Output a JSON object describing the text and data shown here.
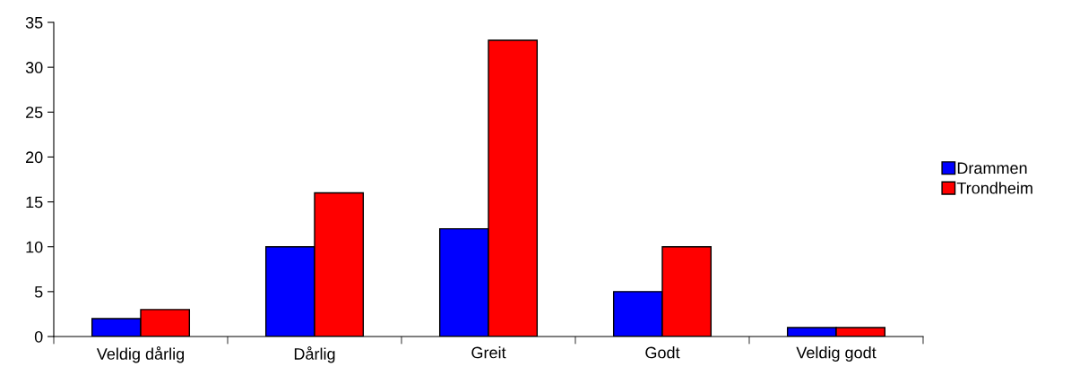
{
  "chart_data": {
    "type": "bar",
    "categories": [
      "Veldig dårlig",
      "Dårlig",
      "Greit",
      "Godt",
      "Veldig godt"
    ],
    "series": [
      {
        "name": "Drammen",
        "color": "#0000ff",
        "values": [
          2,
          10,
          12,
          5,
          1
        ]
      },
      {
        "name": "Trondheim",
        "color": "#ff0000",
        "values": [
          3,
          16,
          33,
          10,
          1
        ]
      }
    ],
    "ylim": [
      0,
      35
    ],
    "yticks": [
      0,
      5,
      10,
      15,
      20,
      25,
      30,
      35
    ],
    "grid": false,
    "legend": "right"
  }
}
